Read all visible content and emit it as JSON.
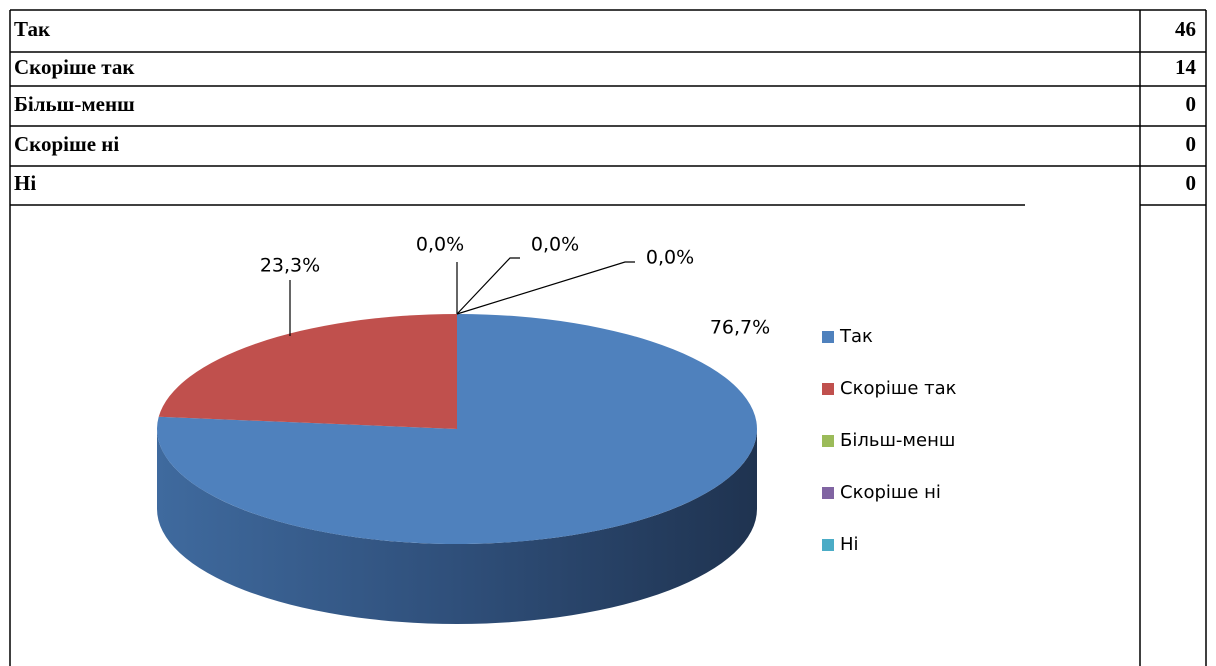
{
  "table": {
    "rows": [
      [
        "Так",
        "46"
      ],
      [
        "Скоріше так",
        "14"
      ],
      [
        "Більш-менш",
        "0"
      ],
      [
        "Скоріше ні",
        "0"
      ],
      [
        "Ні",
        "0"
      ]
    ]
  },
  "chart_data": {
    "type": "pie",
    "categories": [
      "Так",
      "Скоріше так",
      "Більш-менш",
      "Скоріше ні",
      "Ні"
    ],
    "values": [
      76.7,
      23.3,
      0,
      0,
      0
    ],
    "value_labels": [
      "76,7%",
      "23,3%",
      "0,0%",
      "0,0%",
      "0,0%"
    ],
    "colors": [
      "#4f81bd",
      "#c0504d",
      "#9bbb59",
      "#8064a2",
      "#4bacc6"
    ],
    "legend": "right"
  }
}
